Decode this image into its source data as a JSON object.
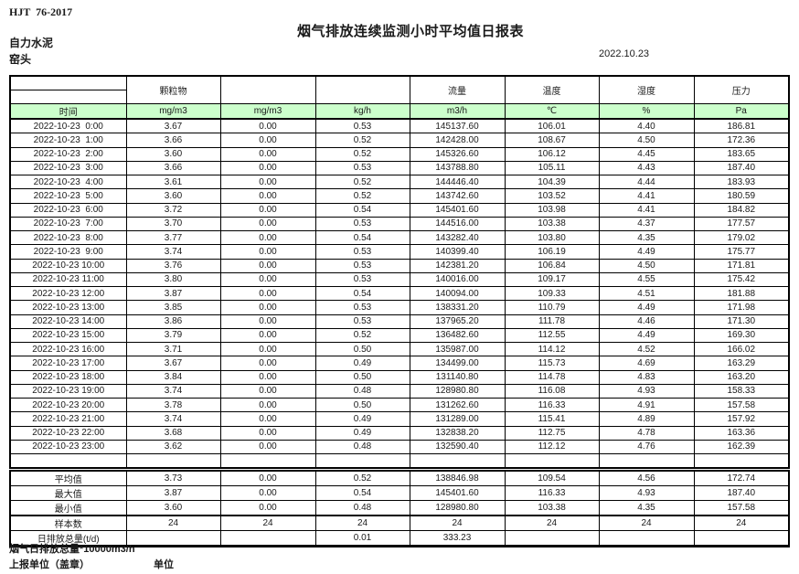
{
  "header": {
    "standard": "HJT  76-2017",
    "title": "烟气排放连续监测小时平均值日报表",
    "company": "自力水泥",
    "location": "窑头",
    "date": "2022.10.23"
  },
  "table": {
    "group_headers": [
      "",
      "颗粒物",
      "",
      "",
      "流量",
      "温度",
      "湿度",
      "压力"
    ],
    "unit_row": [
      "时间",
      "mg/m3",
      "mg/m3",
      "kg/h",
      "m3/h",
      "℃",
      "%",
      "Pa"
    ],
    "rows": [
      [
        "2022-10-23  0:00",
        "3.67",
        "0.00",
        "0.53",
        "145137.60",
        "106.01",
        "4.40",
        "186.81"
      ],
      [
        "2022-10-23  1:00",
        "3.66",
        "0.00",
        "0.52",
        "142428.00",
        "108.67",
        "4.50",
        "172.36"
      ],
      [
        "2022-10-23  2:00",
        "3.60",
        "0.00",
        "0.52",
        "145326.60",
        "106.12",
        "4.45",
        "183.65"
      ],
      [
        "2022-10-23  3:00",
        "3.66",
        "0.00",
        "0.53",
        "143788.80",
        "105.11",
        "4.43",
        "187.40"
      ],
      [
        "2022-10-23  4:00",
        "3.61",
        "0.00",
        "0.52",
        "144446.40",
        "104.39",
        "4.44",
        "183.93"
      ],
      [
        "2022-10-23  5:00",
        "3.60",
        "0.00",
        "0.52",
        "143742.60",
        "103.52",
        "4.41",
        "180.59"
      ],
      [
        "2022-10-23  6:00",
        "3.72",
        "0.00",
        "0.54",
        "145401.60",
        "103.98",
        "4.41",
        "184.82"
      ],
      [
        "2022-10-23  7:00",
        "3.70",
        "0.00",
        "0.53",
        "144516.00",
        "103.38",
        "4.37",
        "177.57"
      ],
      [
        "2022-10-23  8:00",
        "3.77",
        "0.00",
        "0.54",
        "143282.40",
        "103.80",
        "4.35",
        "179.02"
      ],
      [
        "2022-10-23  9:00",
        "3.74",
        "0.00",
        "0.53",
        "140399.40",
        "106.19",
        "4.49",
        "175.77"
      ],
      [
        "2022-10-23 10:00",
        "3.76",
        "0.00",
        "0.53",
        "142381.20",
        "106.84",
        "4.50",
        "171.81"
      ],
      [
        "2022-10-23 11:00",
        "3.80",
        "0.00",
        "0.53",
        "140016.00",
        "109.17",
        "4.55",
        "175.42"
      ],
      [
        "2022-10-23 12:00",
        "3.87",
        "0.00",
        "0.54",
        "140094.00",
        "109.33",
        "4.51",
        "181.88"
      ],
      [
        "2022-10-23 13:00",
        "3.85",
        "0.00",
        "0.53",
        "138331.20",
        "110.79",
        "4.49",
        "171.98"
      ],
      [
        "2022-10-23 14:00",
        "3.86",
        "0.00",
        "0.53",
        "137965.20",
        "111.78",
        "4.46",
        "171.30"
      ],
      [
        "2022-10-23 15:00",
        "3.79",
        "0.00",
        "0.52",
        "136482.60",
        "112.55",
        "4.49",
        "169.30"
      ],
      [
        "2022-10-23 16:00",
        "3.71",
        "0.00",
        "0.50",
        "135987.00",
        "114.12",
        "4.52",
        "166.02"
      ],
      [
        "2022-10-23 17:00",
        "3.67",
        "0.00",
        "0.49",
        "134499.00",
        "115.73",
        "4.69",
        "163.29"
      ],
      [
        "2022-10-23 18:00",
        "3.84",
        "0.00",
        "0.50",
        "131140.80",
        "114.78",
        "4.83",
        "163.20"
      ],
      [
        "2022-10-23 19:00",
        "3.74",
        "0.00",
        "0.48",
        "128980.80",
        "116.08",
        "4.93",
        "158.33"
      ],
      [
        "2022-10-23 20:00",
        "3.78",
        "0.00",
        "0.50",
        "131262.60",
        "116.33",
        "4.91",
        "157.58"
      ],
      [
        "2022-10-23 21:00",
        "3.74",
        "0.00",
        "0.49",
        "131289.00",
        "115.41",
        "4.89",
        "157.92"
      ],
      [
        "2022-10-23 22:00",
        "3.68",
        "0.00",
        "0.49",
        "132838.20",
        "112.75",
        "4.78",
        "163.36"
      ],
      [
        "2022-10-23 23:00",
        "3.62",
        "0.00",
        "0.48",
        "132590.40",
        "112.12",
        "4.76",
        "162.39"
      ]
    ],
    "summary": [
      {
        "label": "平均值",
        "values": [
          "3.73",
          "0.00",
          "0.52",
          "138846.98",
          "109.54",
          "4.56",
          "172.74"
        ]
      },
      {
        "label": "最大值",
        "values": [
          "3.87",
          "0.00",
          "0.54",
          "145401.60",
          "116.33",
          "4.93",
          "187.40"
        ]
      },
      {
        "label": "最小值",
        "values": [
          "3.60",
          "0.00",
          "0.48",
          "128980.80",
          "103.38",
          "4.35",
          "157.58"
        ]
      },
      {
        "label": "样本数",
        "values": [
          "24",
          "24",
          "24",
          "24",
          "24",
          "24",
          "24"
        ]
      },
      {
        "label": "日排放总量(t/d)",
        "values": [
          "",
          "",
          "0.01",
          "333.23",
          "",
          "",
          ""
        ]
      }
    ]
  },
  "footer": {
    "note": "烟气日排放总量*10000m3/h",
    "report_unit_label": "上报单位（盖章）",
    "unit_label": "单位"
  },
  "colors": {
    "header_green": "#ccffcc",
    "border": "#000000"
  }
}
